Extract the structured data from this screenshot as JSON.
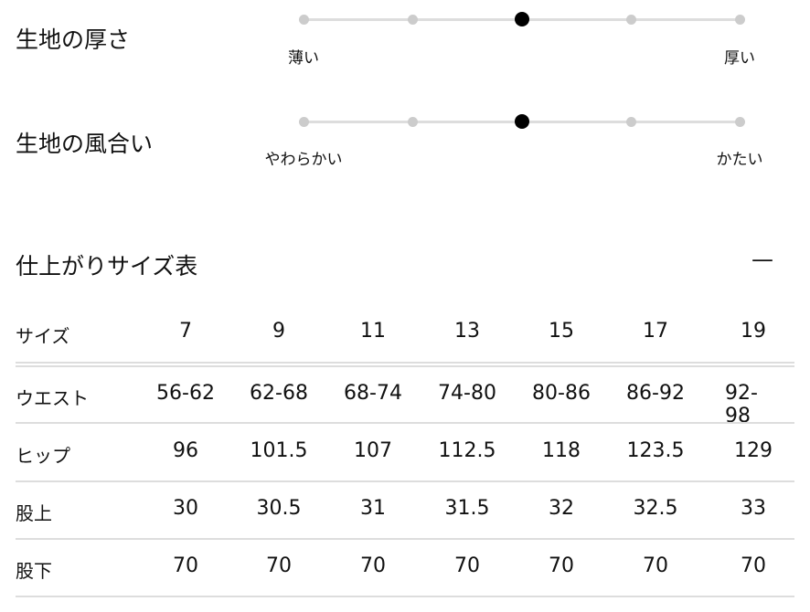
{
  "sliders": [
    {
      "title": "生地の厚さ",
      "min_label": "薄い",
      "max_label": "厚い",
      "steps": 5,
      "selected": 3
    },
    {
      "title": "生地の風合い",
      "min_label": "やわらかい",
      "max_label": "かたい",
      "steps": 5,
      "selected": 3
    }
  ],
  "size_table": {
    "title": "仕上がりサイズ表",
    "collapse_icon": "minus-icon",
    "collapse_label": "—",
    "header": {
      "label": "サイズ",
      "values": [
        "7",
        "9",
        "11",
        "13",
        "15",
        "17",
        "19"
      ]
    },
    "rows": [
      {
        "label": "ウエスト",
        "values": [
          "56-62",
          "62-68",
          "68-74",
          "74-80",
          "80-86",
          "86-92",
          "92-98"
        ]
      },
      {
        "label": "ヒップ",
        "values": [
          "96",
          "101.5",
          "107",
          "112.5",
          "118",
          "123.5",
          "129"
        ]
      },
      {
        "label": "股上",
        "values": [
          "30",
          "30.5",
          "31",
          "31.5",
          "32",
          "32.5",
          "33"
        ]
      },
      {
        "label": "股下",
        "values": [
          "70",
          "70",
          "70",
          "70",
          "70",
          "70",
          "70"
        ]
      }
    ]
  }
}
